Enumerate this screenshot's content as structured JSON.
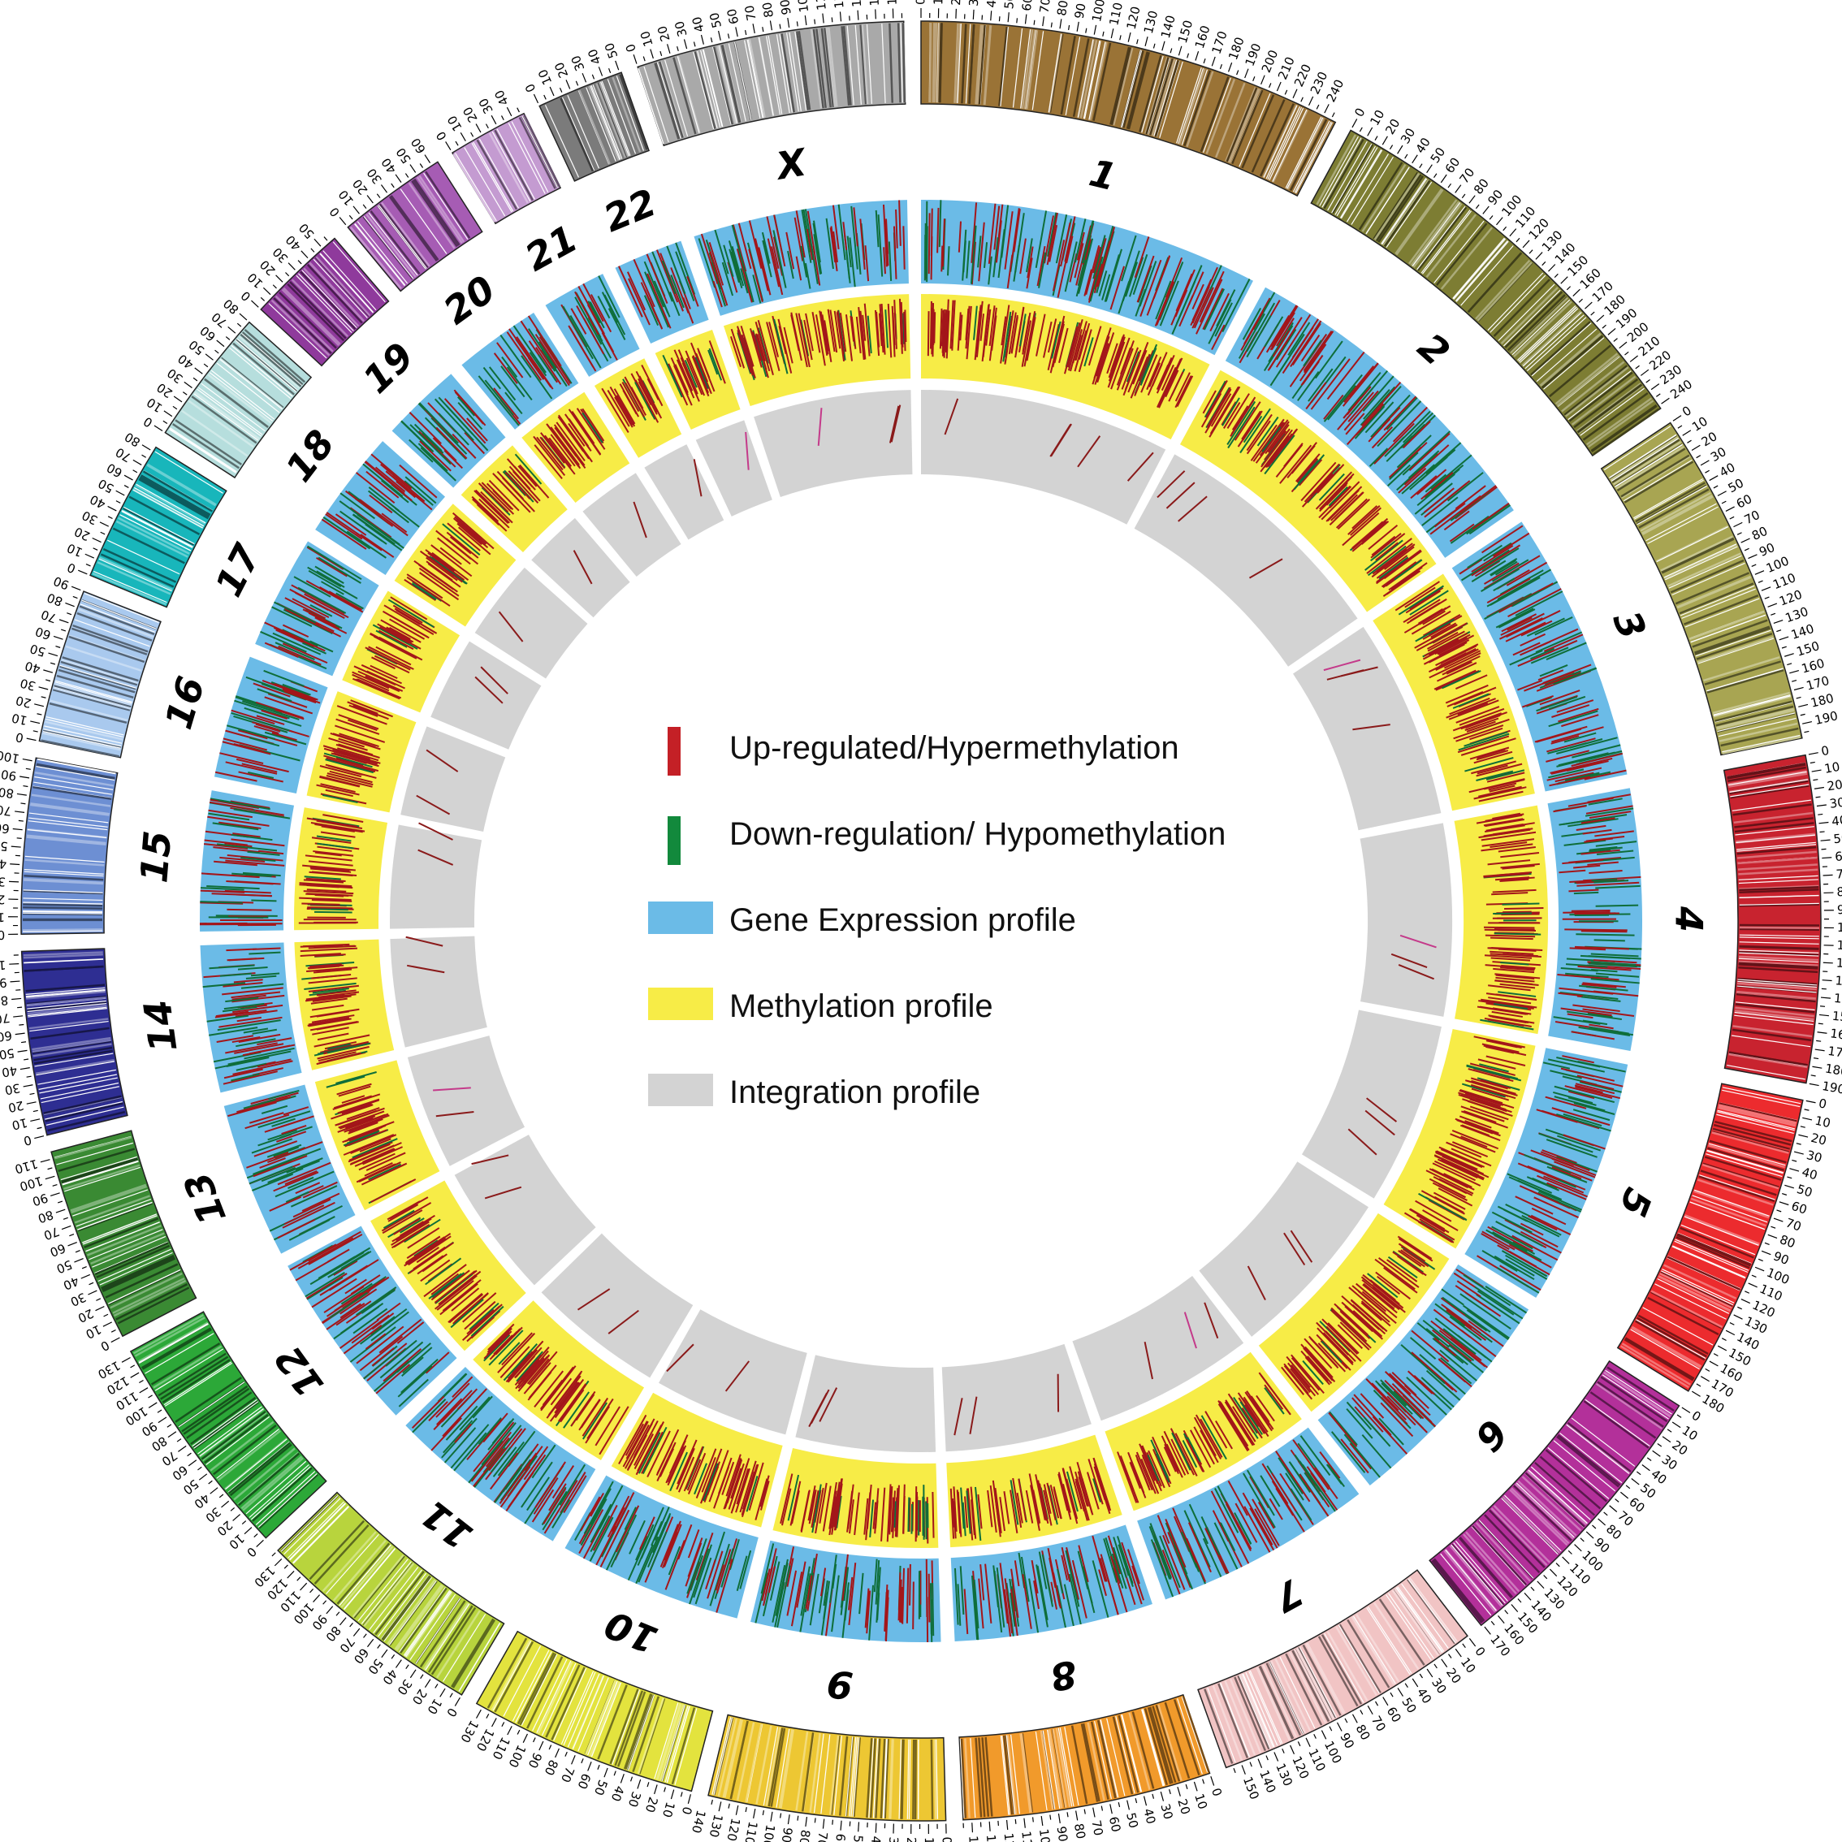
{
  "legend": {
    "items": [
      {
        "label": "Up-regulated/Hypermethylation",
        "color": "#c42026",
        "shape": "bar"
      },
      {
        "label": "Down-regulation/ Hypomethylation",
        "color": "#12893c",
        "shape": "bar"
      },
      {
        "label": "Gene Expression profile",
        "color": "#6bbbe7",
        "shape": "box"
      },
      {
        "label": "Methylation profile",
        "color": "#f7ec47",
        "shape": "box"
      },
      {
        "label": "Integration profile",
        "color": "#d3d3d3",
        "shape": "box"
      }
    ]
  },
  "chromosomes": [
    {
      "name": "1",
      "length": 248,
      "ticks": [
        0,
        10,
        20,
        30,
        40,
        50,
        60,
        70,
        80,
        90,
        100,
        110,
        120,
        130,
        140,
        150,
        160,
        170,
        180,
        190,
        200,
        210,
        220,
        230,
        240
      ],
      "color": "#9a7336"
    },
    {
      "name": "2",
      "length": 242,
      "ticks": [
        0,
        10,
        20,
        30,
        40,
        50,
        60,
        70,
        80,
        90,
        100,
        110,
        120,
        130,
        140,
        150,
        160,
        170,
        180,
        190,
        200,
        210,
        220,
        230,
        240
      ],
      "color": "#7d7d33"
    },
    {
      "name": "3",
      "length": 198,
      "ticks": [
        0,
        10,
        20,
        30,
        40,
        50,
        60,
        70,
        80,
        90,
        100,
        110,
        120,
        130,
        140,
        150,
        160,
        170,
        180,
        190
      ],
      "color": "#a8a552"
    },
    {
      "name": "4",
      "length": 190,
      "ticks": [
        0,
        10,
        20,
        30,
        40,
        50,
        60,
        70,
        80,
        90,
        100,
        110,
        120,
        130,
        140,
        150,
        160,
        170,
        180,
        190
      ],
      "color": "#c8232f"
    },
    {
      "name": "5",
      "length": 181,
      "ticks": [
        0,
        10,
        20,
        30,
        40,
        50,
        60,
        70,
        80,
        90,
        100,
        110,
        120,
        130,
        140,
        150,
        160,
        170,
        180
      ],
      "color": "#ec2b2e"
    },
    {
      "name": "6",
      "length": 171,
      "ticks": [
        0,
        10,
        20,
        30,
        40,
        50,
        60,
        70,
        80,
        90,
        100,
        110,
        120,
        130,
        140,
        150,
        160,
        170
      ],
      "color": "#b3309a"
    },
    {
      "name": "7",
      "length": 159,
      "ticks": [
        0,
        10,
        20,
        30,
        40,
        50,
        60,
        70,
        80,
        90,
        100,
        110,
        120,
        130,
        140,
        150
      ],
      "color": "#f1c4c4"
    },
    {
      "name": "8",
      "length": 145,
      "ticks": [
        0,
        10,
        20,
        30,
        40,
        50,
        60,
        70,
        80,
        90,
        100,
        110,
        120,
        130,
        140
      ],
      "color": "#f19a2b"
    },
    {
      "name": "9",
      "length": 138,
      "ticks": [
        0,
        10,
        20,
        30,
        40,
        50,
        60,
        70,
        80,
        90,
        100,
        110,
        120,
        130,
        140
      ],
      "color": "#edc733"
    },
    {
      "name": "10",
      "length": 134,
      "ticks": [
        0,
        10,
        20,
        30,
        40,
        50,
        60,
        70,
        80,
        90,
        100,
        110,
        120,
        130
      ],
      "color": "#e3e33e"
    },
    {
      "name": "11",
      "length": 135,
      "ticks": [
        0,
        10,
        20,
        30,
        40,
        50,
        60,
        70,
        80,
        90,
        100,
        110,
        120,
        130
      ],
      "color": "#b8d43d"
    },
    {
      "name": "12",
      "length": 133,
      "ticks": [
        0,
        10,
        20,
        30,
        40,
        50,
        60,
        70,
        80,
        90,
        100,
        110,
        120,
        130
      ],
      "color": "#2ca838"
    },
    {
      "name": "13",
      "length": 114,
      "ticks": [
        0,
        10,
        20,
        30,
        40,
        50,
        60,
        70,
        80,
        90,
        100,
        110
      ],
      "color": "#3a8a33"
    },
    {
      "name": "14",
      "length": 107,
      "ticks": [
        0,
        10,
        20,
        30,
        40,
        50,
        60,
        70,
        80,
        90,
        100
      ],
      "color": "#2e2e92"
    },
    {
      "name": "15",
      "length": 102,
      "ticks": [
        0,
        10,
        20,
        30,
        40,
        50,
        60,
        70,
        80,
        90,
        100
      ],
      "color": "#6d8fd3"
    },
    {
      "name": "16",
      "length": 90,
      "ticks": [
        0,
        10,
        20,
        30,
        40,
        50,
        60,
        70,
        80,
        90
      ],
      "color": "#a9c9ee"
    },
    {
      "name": "17",
      "length": 83,
      "ticks": [
        0,
        10,
        20,
        30,
        40,
        50,
        60,
        70,
        80
      ],
      "color": "#18b6bb"
    },
    {
      "name": "18",
      "length": 80,
      "ticks": [
        0,
        10,
        20,
        30,
        40,
        50,
        60,
        70,
        80
      ],
      "color": "#b6dedd"
    },
    {
      "name": "19",
      "length": 59,
      "ticks": [
        0,
        10,
        20,
        30,
        40,
        50
      ],
      "color": "#8f3a9c"
    },
    {
      "name": "20",
      "length": 64,
      "ticks": [
        0,
        10,
        20,
        30,
        40,
        50,
        60
      ],
      "color": "#a65cb4"
    },
    {
      "name": "21",
      "length": 47,
      "ticks": [
        0,
        10,
        20,
        30,
        40
      ],
      "color": "#c49bd1"
    },
    {
      "name": "22",
      "length": 51,
      "ticks": [
        0,
        10,
        20,
        30,
        40,
        50
      ],
      "color": "#7b7b7b"
    },
    {
      "name": "X",
      "length": 156,
      "ticks": [
        0,
        10,
        20,
        30,
        40,
        50,
        60,
        70,
        80,
        90,
        100,
        110,
        120,
        130,
        140,
        150
      ],
      "color": "#a9a9a9"
    }
  ],
  "track_colors": {
    "expression": "#6bbbe7",
    "methylation": "#f7ec47",
    "integration": "#d3d3d3",
    "up": "#a3161a",
    "down": "#0f6e3a",
    "integration_mark": "#8a1a1a",
    "integration_mark_alt": "#c43a8a"
  }
}
